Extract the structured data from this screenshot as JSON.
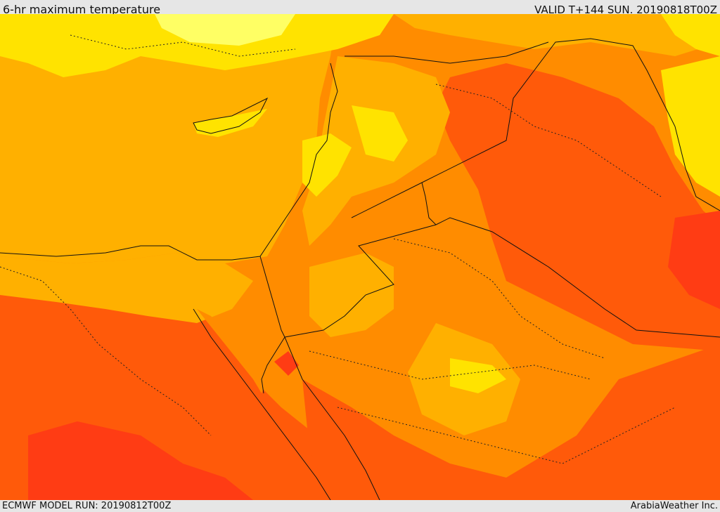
{
  "header": {
    "title": "6-hr maximum temperature",
    "valid": "VALID T+144 SUN. 20190818T00Z"
  },
  "footer": {
    "model_run": "ECMWF MODEL RUN: 20190812T00Z",
    "credit": "ArabiaWeather Inc."
  },
  "colors": {
    "pale_yellow": "#ffff64",
    "yellow": "#ffe300",
    "light_orange": "#ffb000",
    "orange": "#ff8c00",
    "dark_orange": "#ff5a0a",
    "red_orange": "#ff3c14",
    "background": "#e6e6e6"
  }
}
